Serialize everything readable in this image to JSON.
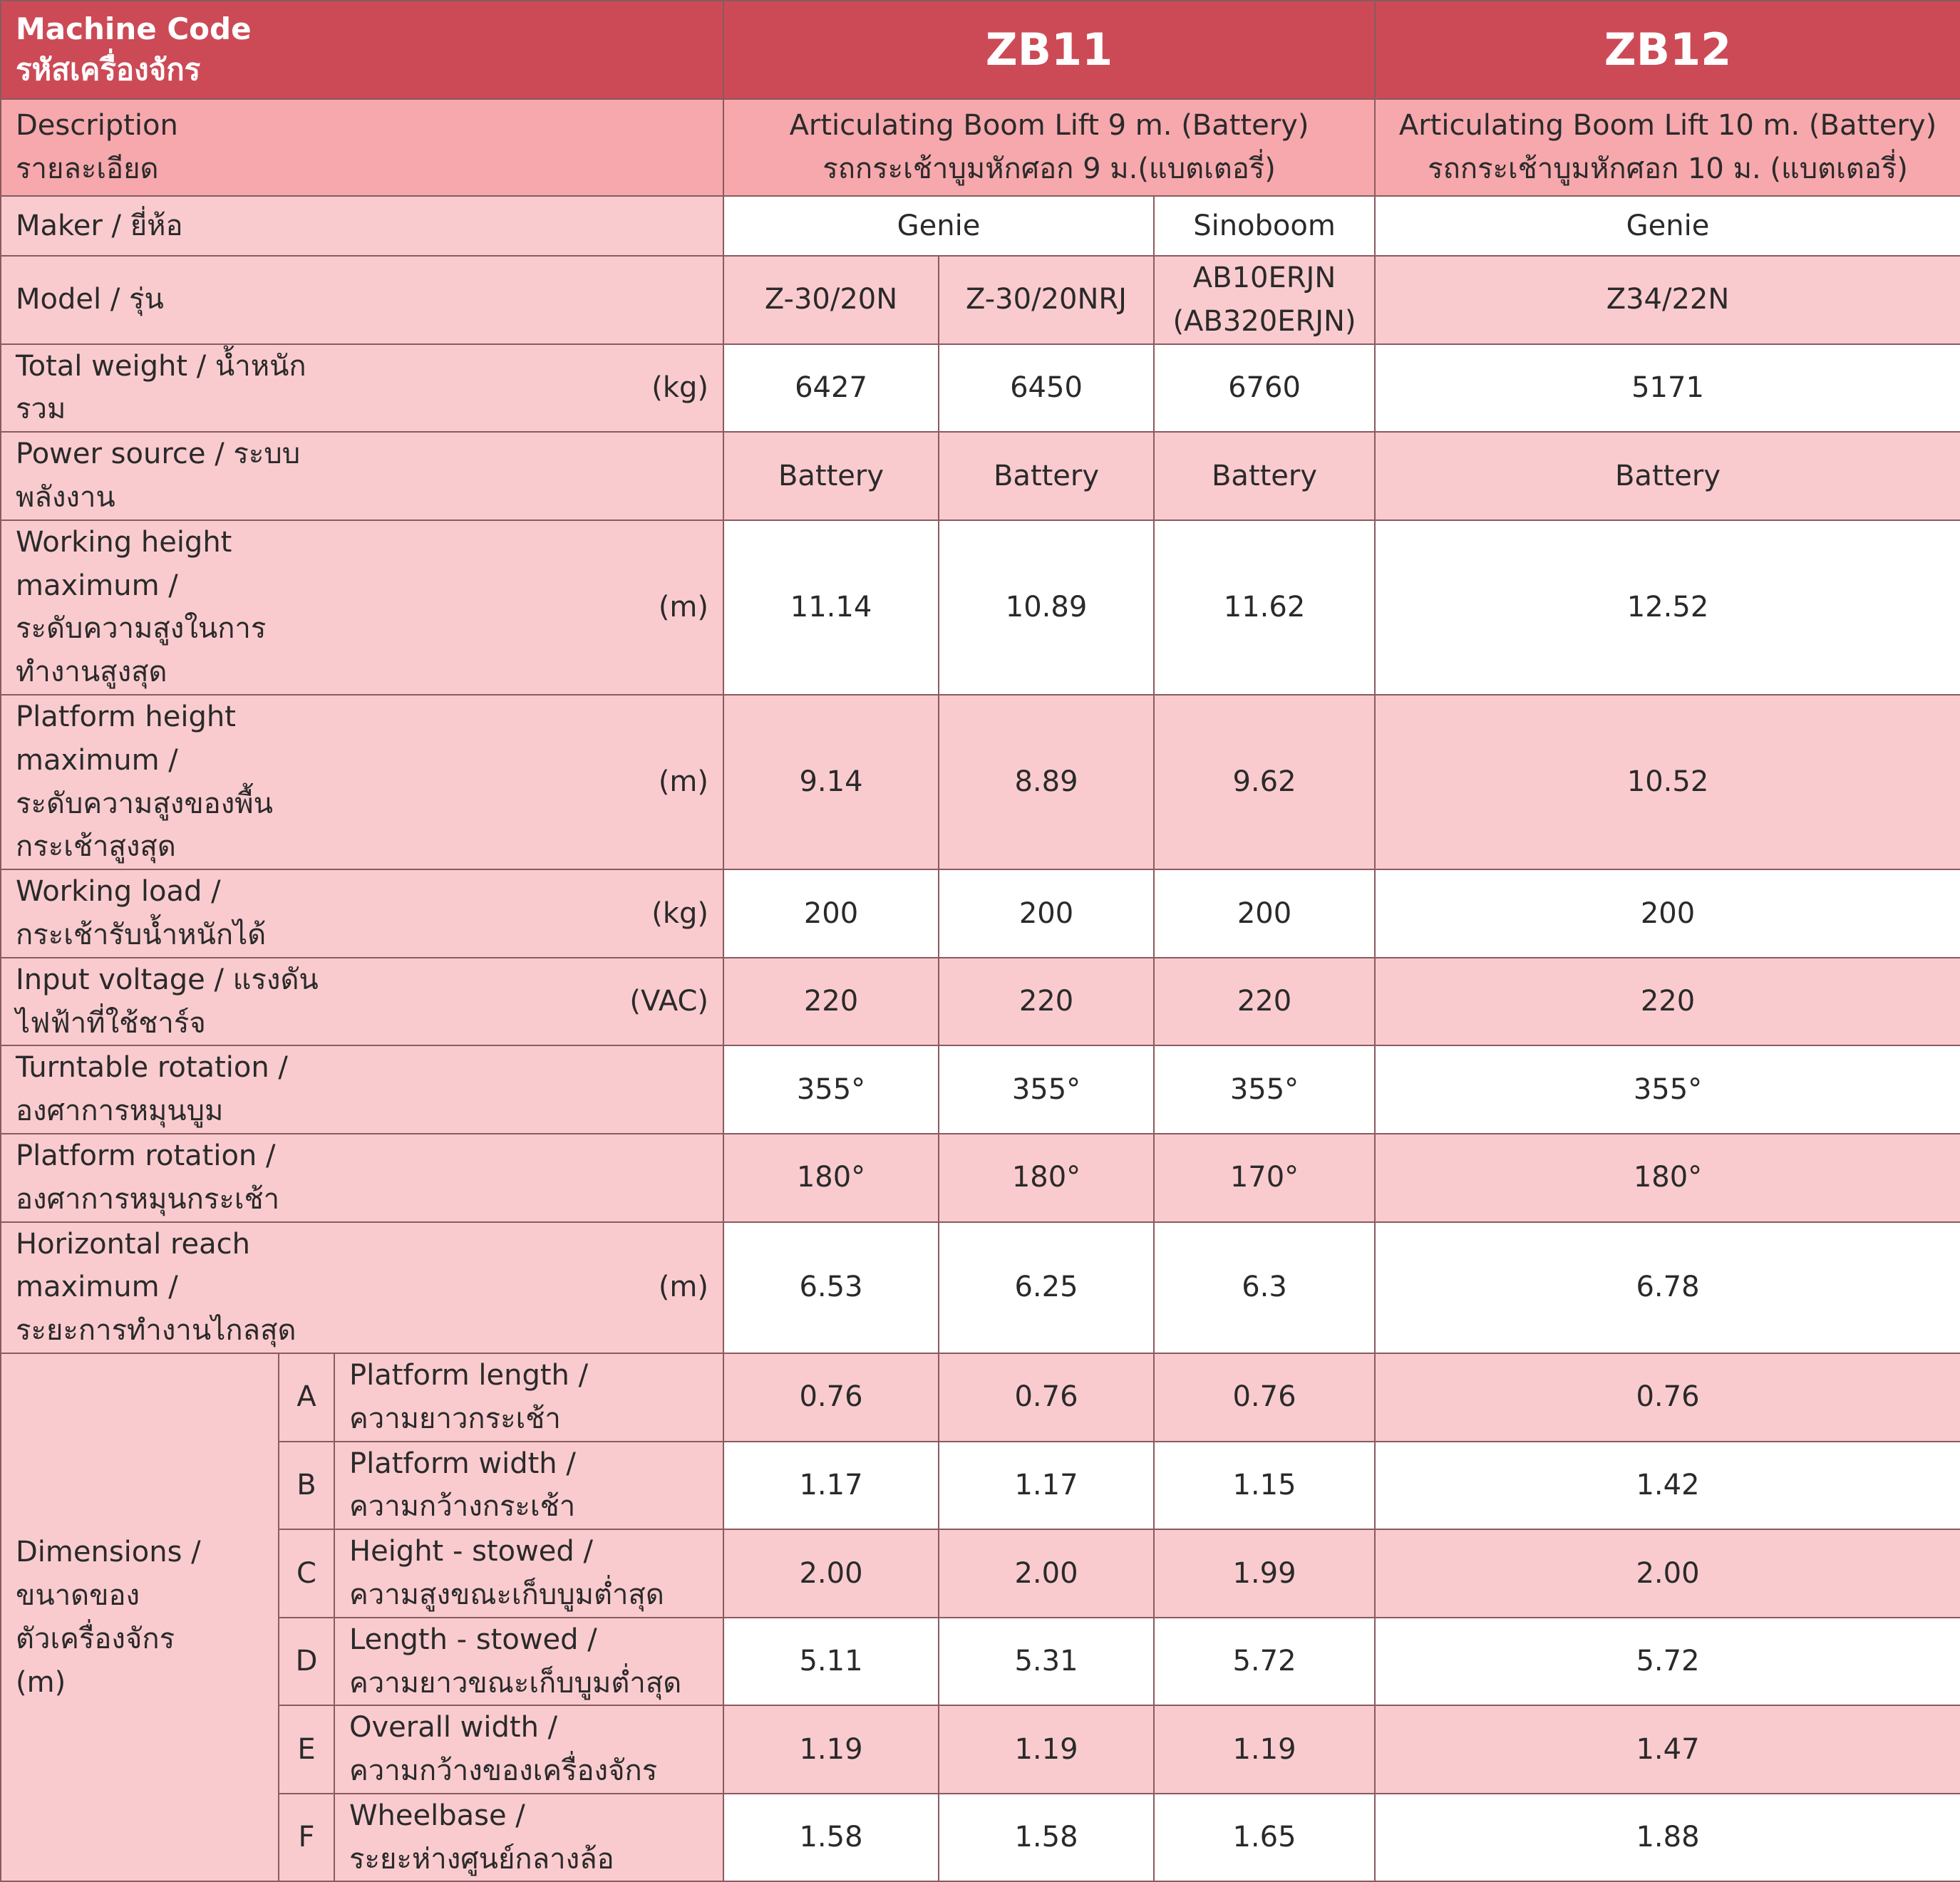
{
  "header": {
    "label_en": "Machine Code",
    "label_th": "รหัสเครื่องจักร",
    "codes": [
      "ZB11",
      "ZB12"
    ]
  },
  "description": {
    "label_en": "Description",
    "label_th": "รายละเอียด",
    "zb11_en": "Articulating Boom Lift 9 m. (Battery)",
    "zb11_th": "รถกระเช้าบูมหักศอก 9 ม.(แบตเตอรี่)",
    "zb12_en": "Articulating Boom Lift 10 m. (Battery)",
    "zb12_th": "รถกระเช้าบูมหักศอก 10 ม. (แบตเตอรี่)"
  },
  "maker": {
    "label": "Maker / ยี่ห้อ",
    "values": [
      "Genie",
      "Sinoboom",
      "Genie"
    ]
  },
  "model": {
    "label": "Model / รุ่น",
    "values": [
      "Z-30/20N",
      "Z-30/20NRJ",
      "AB10ERJN",
      "(AB320ERJN)",
      "Z34/22N"
    ]
  },
  "rows": [
    {
      "label": "Total weight / น้ำหนักรวม",
      "unit": "(kg)",
      "values": [
        "6427",
        "6450",
        "6760",
        "5171"
      ]
    },
    {
      "label": "Power source / ระบบพลังงาน",
      "unit": "",
      "values": [
        "Battery",
        "Battery",
        "Battery",
        "Battery"
      ]
    },
    {
      "label": "Working height maximum /",
      "label2": "ระดับความสูงในการทำงานสูงสุด",
      "unit": "(m)",
      "values": [
        "11.14",
        "10.89",
        "11.62",
        "12.52"
      ]
    },
    {
      "label": "Platform height maximum /",
      "label2": "ระดับความสูงของพื้นกระเช้าสูงสุด",
      "unit": "(m)",
      "values": [
        "9.14",
        "8.89",
        "9.62",
        "10.52"
      ]
    },
    {
      "label": "Working load / กระเช้ารับน้ำหนักได้",
      "unit": "(kg)",
      "values": [
        "200",
        "200",
        "200",
        "200"
      ]
    },
    {
      "label": "Input voltage / แรงดันไฟฟ้าที่ใช้ชาร์จ",
      "unit": "(VAC)",
      "values": [
        "220",
        "220",
        "220",
        "220"
      ]
    },
    {
      "label": "Turntable rotation / องศาการหมุนบูม",
      "unit": "",
      "values": [
        "355°",
        "355°",
        "355°",
        "355°"
      ]
    },
    {
      "label": "Platform rotation / องศาการหมุนกระเช้า",
      "unit": "",
      "values": [
        "180°",
        "180°",
        "170°",
        "180°"
      ]
    },
    {
      "label": "Horizontal reach maximum /",
      "label2": "ระยะการทำงานไกลสุด",
      "unit": "(m)",
      "values": [
        "6.53",
        "6.25",
        "6.3",
        "6.78"
      ]
    }
  ],
  "dimensions": {
    "label_lines": [
      "Dimensions /",
      "ขนาดของ",
      "ตัวเครื่องจักร",
      "(m)"
    ],
    "rows": [
      {
        "letter": "A",
        "en": "Platform length /",
        "th": "ความยาวกระเช้า",
        "values": [
          "0.76",
          "0.76",
          "0.76",
          "0.76"
        ]
      },
      {
        "letter": "B",
        "en": "Platform width /",
        "th": "ความกว้างกระเช้า",
        "values": [
          "1.17",
          "1.17",
          "1.15",
          "1.42"
        ]
      },
      {
        "letter": "C",
        "en": "Height - stowed /",
        "th": "ความสูงขณะเก็บบูมต่ำสุด",
        "values": [
          "2.00",
          "2.00",
          "1.99",
          "2.00"
        ]
      },
      {
        "letter": "D",
        "en": "Length - stowed /",
        "th": "ความยาวขณะเก็บบูมต่ำสุด",
        "values": [
          "5.11",
          "5.31",
          "5.72",
          "5.72"
        ]
      },
      {
        "letter": "E",
        "en": "Overall width /",
        "th": "ความกว้างของเครื่องจักร",
        "values": [
          "1.19",
          "1.19",
          "1.19",
          "1.47"
        ]
      },
      {
        "letter": "F",
        "en": "Wheelbase /",
        "th": "ระยะห่างศูนย์กลางล้อ",
        "values": [
          "1.58",
          "1.58",
          "1.65",
          "1.88"
        ]
      }
    ]
  },
  "colors": {
    "header_bg": "#cc4a56",
    "description_bg": "#f6a8ad",
    "pink_bg": "#f9cbcf",
    "white_bg": "#ffffff",
    "border": "#8a5a5e"
  }
}
